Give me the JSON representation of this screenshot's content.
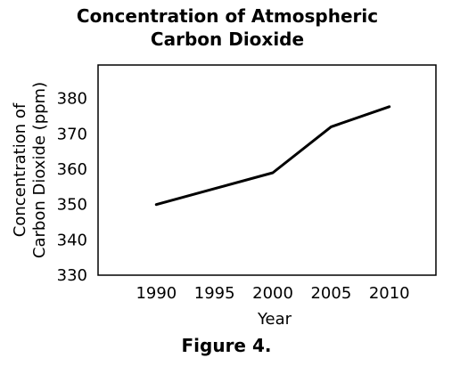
{
  "chart_data": {
    "type": "line",
    "title_lines": [
      "Concentration of Atmospheric",
      "Carbon Dioxide"
    ],
    "xlabel": "Year",
    "ylabel_lines": [
      "Concentration of",
      "Carbon Dioxide (ppm)"
    ],
    "caption": "Figure 4.",
    "x": [
      1990,
      1995,
      2000,
      2005,
      2010
    ],
    "x_ticks": [
      "1990",
      "1995",
      "2000",
      "2005",
      "2010"
    ],
    "y_ticks": [
      "330",
      "340",
      "350",
      "360",
      "370",
      "380"
    ],
    "xlim": [
      1985,
      2014
    ],
    "ylim": [
      330,
      389.5
    ],
    "series": [
      {
        "values": [
          350,
          354.5,
          359,
          372,
          377.7
        ],
        "color": "#000000"
      }
    ],
    "grid": false,
    "legend": "none"
  }
}
